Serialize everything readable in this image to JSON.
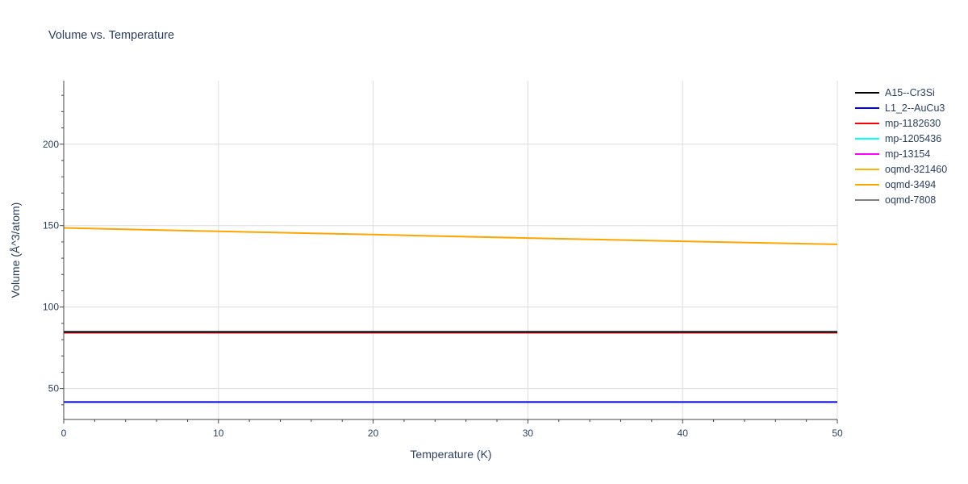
{
  "chart_data": {
    "type": "line",
    "title": "Volume vs. Temperature",
    "xlabel": "Temperature (K)",
    "ylabel": "Volume (Å^3/atom)",
    "xlim": [
      0,
      50
    ],
    "ylim": [
      31,
      239
    ],
    "xticks": [
      0,
      10,
      20,
      30,
      40,
      50
    ],
    "yticks": [
      50,
      100,
      150,
      200
    ],
    "grid": true,
    "legend_position": "right",
    "series": [
      {
        "name": "A15--Cr3Si",
        "color": "#000000",
        "x": [
          0,
          50
        ],
        "y": [
          84.8,
          84.8
        ]
      },
      {
        "name": "L1_2--AuCu3",
        "color": "#0000ff",
        "x": [
          0,
          50
        ],
        "y": [
          41.7,
          41.7
        ]
      },
      {
        "name": "mp-1182630",
        "color": "#ff0000",
        "x": [
          0,
          50
        ],
        "y": [
          84.3,
          84.3
        ]
      },
      {
        "name": "mp-1205436",
        "color": "#00ffff",
        "x": [
          0,
          50
        ],
        "y": [
          84.3,
          84.3
        ]
      },
      {
        "name": "mp-13154",
        "color": "#ff00ff",
        "x": [
          0,
          50
        ],
        "y": [
          84.3,
          84.3
        ]
      },
      {
        "name": "oqmd-321460",
        "color": "#ffb300",
        "x": [
          0,
          50
        ],
        "y": [
          84.3,
          84.3
        ]
      },
      {
        "name": "oqmd-3494",
        "color": "#ffa500",
        "x": [
          0,
          10,
          20,
          30,
          40,
          50
        ],
        "y": [
          148.6,
          146.5,
          144.5,
          142.4,
          140.4,
          138.5
        ]
      },
      {
        "name": "oqmd-7808",
        "color": "#808080",
        "x": [
          0,
          50
        ],
        "y": [
          84.3,
          84.3
        ]
      }
    ]
  }
}
